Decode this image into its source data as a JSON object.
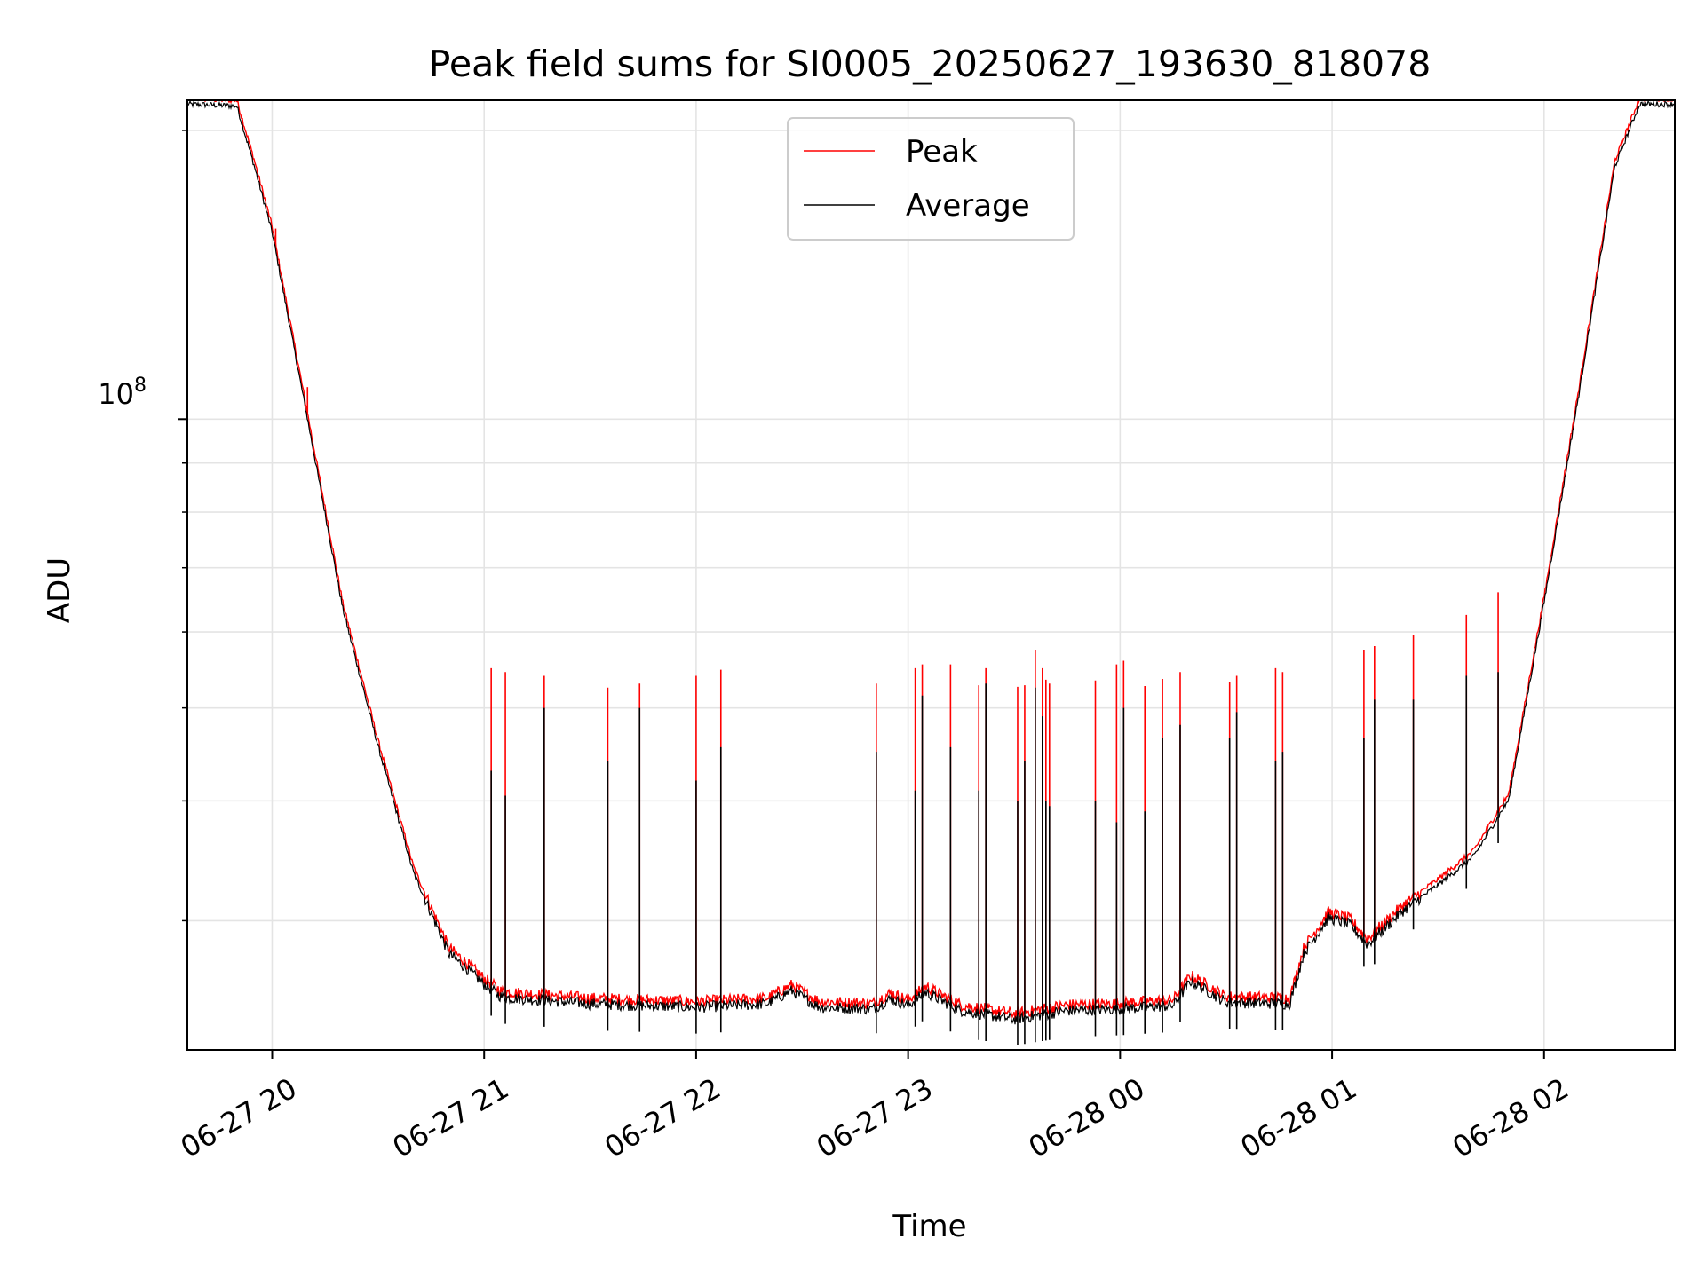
{
  "chart_data": {
    "type": "line",
    "title": "Peak field sums for SI0005_20250627_193630_818078",
    "xlabel": "Time",
    "ylabel": "ADU",
    "yscale": "log",
    "ylim": [
      22000000,
      215000000
    ],
    "xlim": [
      "2025-06-27 19:36",
      "2025-06-28 02:37"
    ],
    "grid": true,
    "legend_position": "top-center",
    "colors": {
      "Peak": "#ff0000",
      "Average": "#000000"
    },
    "x_ticks": [
      "06-27 20",
      "06-27 21",
      "06-27 22",
      "06-27 23",
      "06-28 00",
      "06-28 01",
      "06-28 02"
    ],
    "y_tick_label": {
      "base": "10",
      "exponent": "8"
    },
    "series": [
      {
        "name": "Peak",
        "baseline": [
          [
            "2025-06-27 19:36",
            215000000
          ],
          [
            "2025-06-27 19:50",
            214000000
          ],
          [
            "2025-06-27 19:55",
            185000000
          ],
          [
            "2025-06-27 20:00",
            158000000
          ],
          [
            "2025-06-27 20:10",
            101000000
          ],
          [
            "2025-06-27 20:20",
            64000000
          ],
          [
            "2025-06-27 20:30",
            46000000
          ],
          [
            "2025-06-27 20:40",
            34000000
          ],
          [
            "2025-06-27 20:50",
            28000000
          ],
          [
            "2025-06-27 20:55",
            27000000
          ],
          [
            "2025-06-27 21:00",
            26000000
          ],
          [
            "2025-06-27 21:05",
            25200000
          ],
          [
            "2025-06-27 21:30",
            24800000
          ],
          [
            "2025-06-27 22:00",
            24600000
          ],
          [
            "2025-06-27 22:20",
            24800000
          ],
          [
            "2025-06-27 22:27",
            25600000
          ],
          [
            "2025-06-27 22:35",
            24600000
          ],
          [
            "2025-06-27 22:50",
            24500000
          ],
          [
            "2025-06-27 22:55",
            25100000
          ],
          [
            "2025-06-27 23:00",
            24700000
          ],
          [
            "2025-06-27 23:05",
            25500000
          ],
          [
            "2025-06-27 23:15",
            24400000
          ],
          [
            "2025-06-27 23:30",
            23900000
          ],
          [
            "2025-06-27 23:45",
            24400000
          ],
          [
            "2025-06-28 00:00",
            24500000
          ],
          [
            "2025-06-28 00:15",
            24700000
          ],
          [
            "2025-06-28 00:20",
            26200000
          ],
          [
            "2025-06-28 00:30",
            24900000
          ],
          [
            "2025-06-28 00:48",
            24800000
          ],
          [
            "2025-06-28 00:52",
            28000000
          ],
          [
            "2025-06-28 00:59",
            30500000
          ],
          [
            "2025-06-28 01:05",
            30000000
          ],
          [
            "2025-06-28 01:10",
            28600000
          ],
          [
            "2025-06-28 01:20",
            31000000
          ],
          [
            "2025-06-28 01:30",
            33000000
          ],
          [
            "2025-06-28 01:40",
            35300000
          ],
          [
            "2025-06-28 01:50",
            40500000
          ],
          [
            "2025-06-28 02:00",
            65000000
          ],
          [
            "2025-06-28 02:10",
            108000000
          ],
          [
            "2025-06-28 02:20",
            185000000
          ],
          [
            "2025-06-28 02:27",
            215000000
          ],
          [
            "2025-06-28 02:37",
            215000000
          ]
        ],
        "spikes": [
          [
            "2025-06-27 20:01",
            158000000
          ],
          [
            "2025-06-27 20:10",
            108000000
          ],
          [
            "2025-06-27 21:02",
            55000000
          ],
          [
            "2025-06-27 21:06",
            54500000
          ],
          [
            "2025-06-27 21:17",
            54000000
          ],
          [
            "2025-06-27 21:35",
            52500000
          ],
          [
            "2025-06-27 21:44",
            53000000
          ],
          [
            "2025-06-27 22:00",
            54000000
          ],
          [
            "2025-06-27 22:07",
            54800000
          ],
          [
            "2025-06-27 22:51",
            53000000
          ],
          [
            "2025-06-27 23:02",
            55000000
          ],
          [
            "2025-06-27 23:04",
            55500000
          ],
          [
            "2025-06-27 23:12",
            55500000
          ],
          [
            "2025-06-27 23:20",
            52800000
          ],
          [
            "2025-06-27 23:22",
            55000000
          ],
          [
            "2025-06-27 23:31",
            52600000
          ],
          [
            "2025-06-27 23:33",
            52800000
          ],
          [
            "2025-06-27 23:36",
            57500000
          ],
          [
            "2025-06-27 23:38",
            55000000
          ],
          [
            "2025-06-27 23:39",
            53500000
          ],
          [
            "2025-06-27 23:40",
            53000000
          ],
          [
            "2025-06-27 23:53",
            53400000
          ],
          [
            "2025-06-27 23:59",
            55500000
          ],
          [
            "2025-06-28 00:01",
            56000000
          ],
          [
            "2025-06-28 00:07",
            52700000
          ],
          [
            "2025-06-28 00:12",
            53600000
          ],
          [
            "2025-06-28 00:17",
            54500000
          ],
          [
            "2025-06-28 00:31",
            53200000
          ],
          [
            "2025-06-28 00:33",
            54000000
          ],
          [
            "2025-06-28 00:44",
            55000000
          ],
          [
            "2025-06-28 00:46",
            54500000
          ],
          [
            "2025-06-28 01:09",
            57500000
          ],
          [
            "2025-06-28 01:12",
            58000000
          ],
          [
            "2025-06-28 01:23",
            59500000
          ],
          [
            "2025-06-28 01:38",
            62500000
          ],
          [
            "2025-06-28 01:47",
            66000000
          ]
        ]
      },
      {
        "name": "Average",
        "spikes": [
          [
            "2025-06-27 21:02",
            43000000
          ],
          [
            "2025-06-27 21:06",
            40500000
          ],
          [
            "2025-06-27 21:17",
            50000000
          ],
          [
            "2025-06-27 21:35",
            44000000
          ],
          [
            "2025-06-27 21:44",
            50000000
          ],
          [
            "2025-06-27 22:00",
            42000000
          ],
          [
            "2025-06-27 22:07",
            45500000
          ],
          [
            "2025-06-27 22:51",
            45000000
          ],
          [
            "2025-06-27 23:02",
            41000000
          ],
          [
            "2025-06-27 23:04",
            51500000
          ],
          [
            "2025-06-27 23:12",
            45500000
          ],
          [
            "2025-06-27 23:20",
            41000000
          ],
          [
            "2025-06-27 23:22",
            53000000
          ],
          [
            "2025-06-27 23:31",
            40000000
          ],
          [
            "2025-06-27 23:33",
            44000000
          ],
          [
            "2025-06-27 23:36",
            52500000
          ],
          [
            "2025-06-27 23:38",
            49000000
          ],
          [
            "2025-06-27 23:39",
            40000000
          ],
          [
            "2025-06-27 23:40",
            39500000
          ],
          [
            "2025-06-27 23:53",
            40000000
          ],
          [
            "2025-06-27 23:59",
            38000000
          ],
          [
            "2025-06-28 00:01",
            50000000
          ],
          [
            "2025-06-28 00:07",
            39000000
          ],
          [
            "2025-06-28 00:12",
            46500000
          ],
          [
            "2025-06-28 00:17",
            48000000
          ],
          [
            "2025-06-28 00:31",
            46500000
          ],
          [
            "2025-06-28 00:33",
            49500000
          ],
          [
            "2025-06-28 00:44",
            44000000
          ],
          [
            "2025-06-28 00:46",
            45000000
          ],
          [
            "2025-06-28 01:09",
            46500000
          ],
          [
            "2025-06-28 01:12",
            51000000
          ],
          [
            "2025-06-28 01:23",
            51000000
          ],
          [
            "2025-06-28 01:38",
            54000000
          ],
          [
            "2025-06-28 01:47",
            54500000
          ]
        ]
      }
    ]
  }
}
